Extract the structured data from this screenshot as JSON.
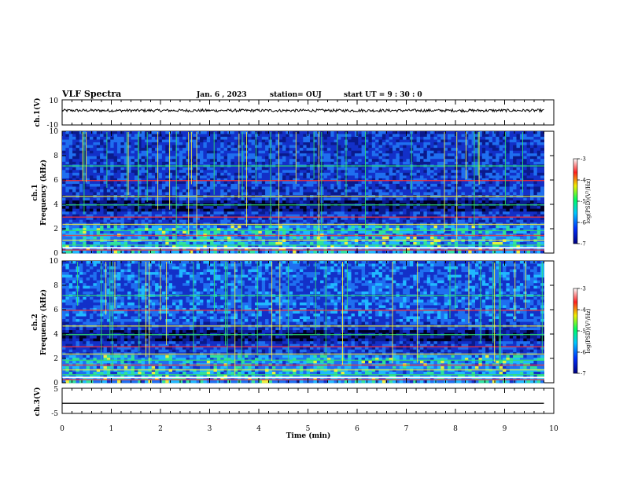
{
  "header": {
    "title": "VLF Spectra",
    "date": "Jan. 6 , 2023",
    "station": "station= OUJ",
    "start_ut": "start UT =  9 : 30 : 0"
  },
  "chart_data": [
    {
      "type": "line",
      "panel": "ch1-waveform",
      "ylabel": "ch.1(V)",
      "ylim": [
        -10,
        10
      ],
      "yticks": [
        "10",
        "-10"
      ],
      "xlim": [
        0,
        10
      ],
      "x": [
        0.0,
        1.0,
        2.0,
        3.0,
        4.0,
        5.0,
        6.0,
        7.0,
        8.0,
        9.0,
        9.8
      ],
      "values": [
        1.5,
        1.5,
        1.5,
        1.5,
        1.5,
        1.5,
        1.5,
        1.5,
        1.5,
        1.5,
        1.5
      ]
    },
    {
      "type": "heatmap",
      "panel": "ch1-spectrogram",
      "ylabel": "Frequency (kHz)",
      "channel_label": "ch.1",
      "ylim": [
        0,
        10
      ],
      "yticks": [
        "0",
        "2",
        "4",
        "6",
        "8",
        "10"
      ],
      "xlim": [
        0,
        10
      ],
      "colorbar": {
        "label": "log(PSD)(V²/Hz)",
        "range": [
          -7,
          -3
        ],
        "ticks": [
          "-3",
          "-4",
          "-5",
          "-6",
          "-7"
        ]
      }
    },
    {
      "type": "heatmap",
      "panel": "ch2-spectrogram",
      "ylabel": "Frequency (kHz)",
      "channel_label": "ch.2",
      "ylim": [
        0,
        10
      ],
      "yticks": [
        "0",
        "2",
        "4",
        "6",
        "8",
        "10"
      ],
      "xlim": [
        0,
        10
      ],
      "colorbar": {
        "label": "log(PSD)(V²/Hz)",
        "range": [
          -7,
          -3
        ],
        "ticks": [
          "-3",
          "-4",
          "-5",
          "-6",
          "-7"
        ]
      }
    },
    {
      "type": "line",
      "panel": "ch3-waveform",
      "ylabel": "ch.3(V)",
      "ylim": [
        -5,
        5
      ],
      "yticks": [
        "5",
        "-5"
      ],
      "xlim": [
        0,
        10
      ],
      "x": [
        0.0,
        9.8
      ],
      "values": [
        -1.0,
        -1.0
      ]
    }
  ],
  "xaxis": {
    "label": "Time (min)",
    "ticks": [
      "0",
      "1",
      "2",
      "3",
      "4",
      "5",
      "6",
      "7",
      "8",
      "9",
      "10"
    ]
  },
  "colors": {
    "background": "#000000",
    "low": "#0a1a8c",
    "mid": "#1fa0ff",
    "high": "#ff2020",
    "band": "#1fd3a0"
  }
}
